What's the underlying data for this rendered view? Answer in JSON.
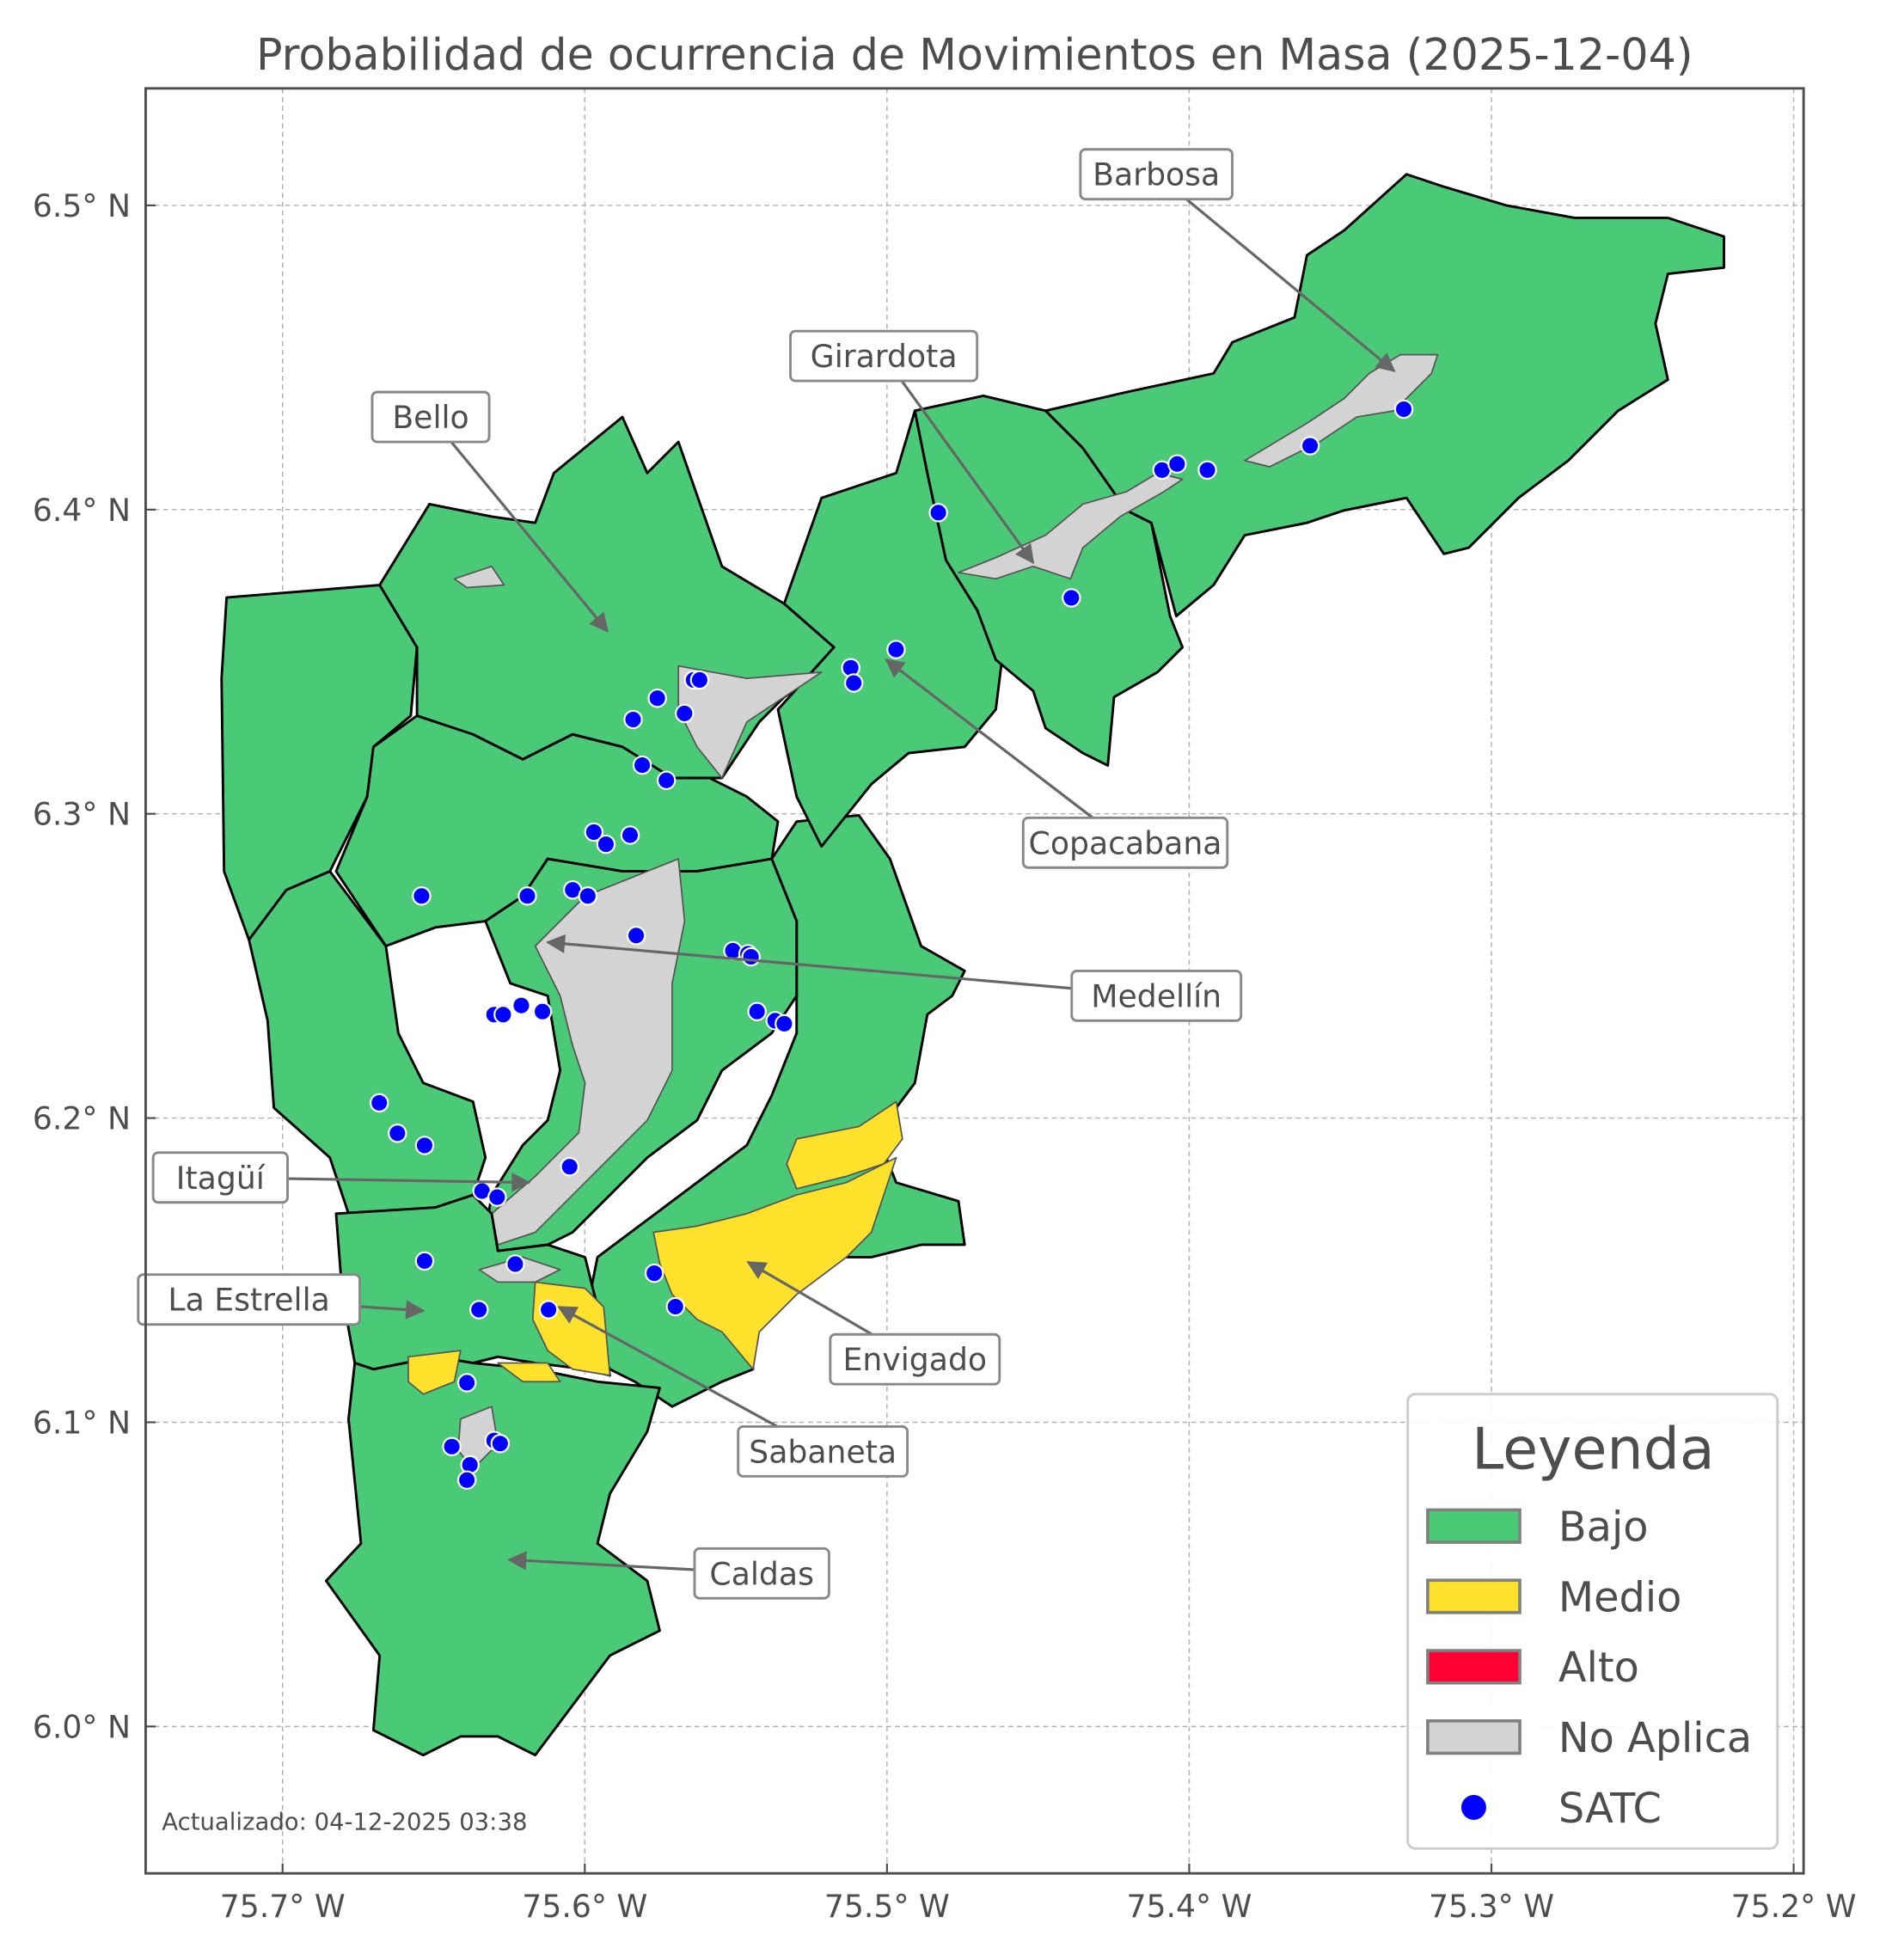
{
  "title": "Probabilidad de ocurrencia de Movimientos en Masa (2025-12-04)",
  "footer": "Actualizado: 04-12-2025 03:38",
  "axes": {
    "x_ticks": [
      {
        "value": -75.7,
        "label": "75.7° W"
      },
      {
        "value": -75.6,
        "label": "75.6° W"
      },
      {
        "value": -75.5,
        "label": "75.5° W"
      },
      {
        "value": -75.4,
        "label": "75.4° W"
      },
      {
        "value": -75.3,
        "label": "75.3° W"
      },
      {
        "value": -75.2,
        "label": "75.2° W"
      }
    ],
    "y_ticks": [
      {
        "value": 6.0,
        "label": "6.0° N"
      },
      {
        "value": 6.1,
        "label": "6.1° N"
      },
      {
        "value": 6.2,
        "label": "6.2° N"
      },
      {
        "value": 6.3,
        "label": "6.3° N"
      },
      {
        "value": 6.4,
        "label": "6.4° N"
      },
      {
        "value": 6.5,
        "label": "6.5° N"
      }
    ],
    "grid": true
  },
  "legend": {
    "title": "Leyenda",
    "placement": "bottom-right",
    "items": [
      {
        "label": "Bajo",
        "color": "#4ac977",
        "kind": "patch"
      },
      {
        "label": "Medio",
        "color": "#fde12b",
        "kind": "patch"
      },
      {
        "label": "Alto",
        "color": "#ff0033",
        "kind": "patch"
      },
      {
        "label": "No Aplica",
        "color": "#d3d3d3",
        "kind": "patch"
      },
      {
        "label": "SATC",
        "color": "#0000ff",
        "kind": "marker"
      }
    ]
  },
  "municipality_labels": [
    "Barbosa",
    "Girardota",
    "Bello",
    "Copacabana",
    "Medellín",
    "Itagüí",
    "La Estrella",
    "Envigado",
    "Sabaneta",
    "Caldas"
  ],
  "satc_points": [
    [
      -75.329,
      6.433
    ],
    [
      -75.36,
      6.421
    ],
    [
      -75.409,
      6.413
    ],
    [
      -75.404,
      6.415
    ],
    [
      -75.394,
      6.413
    ],
    [
      -75.483,
      6.399
    ],
    [
      -75.439,
      6.371
    ],
    [
      -75.497,
      6.354
    ],
    [
      -75.512,
      6.348
    ],
    [
      -75.511,
      6.343
    ],
    [
      -75.564,
      6.344
    ],
    [
      -75.562,
      6.344
    ],
    [
      -75.567,
      6.333
    ],
    [
      -75.576,
      6.338
    ],
    [
      -75.584,
      6.331
    ],
    [
      -75.581,
      6.316
    ],
    [
      -75.573,
      6.311
    ],
    [
      -75.597,
      6.294
    ],
    [
      -75.593,
      6.29
    ],
    [
      -75.585,
      6.293
    ],
    [
      -75.654,
      6.273
    ],
    [
      -75.619,
      6.273
    ],
    [
      -75.604,
      6.275
    ],
    [
      -75.599,
      6.273
    ],
    [
      -75.583,
      6.26
    ],
    [
      -75.551,
      6.255
    ],
    [
      -75.546,
      6.254
    ],
    [
      -75.545,
      6.253
    ],
    [
      -75.543,
      6.235
    ],
    [
      -75.537,
      6.232
    ],
    [
      -75.534,
      6.231
    ],
    [
      -75.621,
      6.237
    ],
    [
      -75.63,
      6.234
    ],
    [
      -75.627,
      6.234
    ],
    [
      -75.614,
      6.235
    ],
    [
      -75.668,
      6.205
    ],
    [
      -75.662,
      6.195
    ],
    [
      -75.653,
      6.191
    ],
    [
      -75.605,
      6.184
    ],
    [
      -75.634,
      6.176
    ],
    [
      -75.629,
      6.174
    ],
    [
      -75.623,
      6.152
    ],
    [
      -75.653,
      6.153
    ],
    [
      -75.577,
      6.149
    ],
    [
      -75.57,
      6.138
    ],
    [
      -75.635,
      6.137
    ],
    [
      -75.612,
      6.137
    ],
    [
      -75.639,
      6.113
    ],
    [
      -75.644,
      6.092
    ],
    [
      -75.63,
      6.094
    ],
    [
      -75.628,
      6.093
    ],
    [
      -75.638,
      6.086
    ],
    [
      -75.639,
      6.081
    ]
  ],
  "colors": {
    "bajo": "#4ac977",
    "medio": "#fde12b",
    "alto": "#ff0033",
    "no_aplica": "#d3d3d3",
    "satc": "#0000ff"
  }
}
